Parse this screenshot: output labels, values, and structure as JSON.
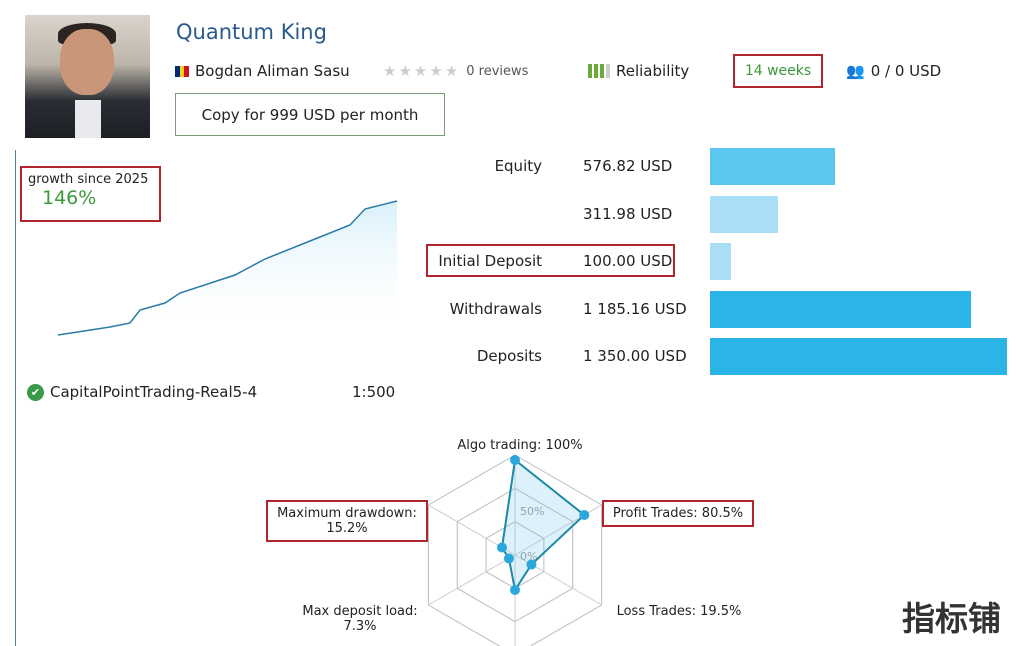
{
  "signal": {
    "title": "Quantum King",
    "author": "Bogdan Aliman Sasu",
    "rating_count": "0 reviews",
    "reliability_label": "Reliability",
    "weeks": "14 weeks",
    "subscribers": "0 / 0 USD",
    "subscribe_label": "Copy for 999 USD per month"
  },
  "growth": {
    "label": "growth since 2025",
    "value": "146%"
  },
  "broker": {
    "name": "CapitalPointTrading-Real5-4",
    "leverage": "1:500"
  },
  "stats": [
    {
      "label": "Equity",
      "value": "576.82 USD",
      "fraction": 0.42,
      "color": "#5bc6ee"
    },
    {
      "label": "",
      "value": "311.98 USD",
      "fraction": 0.23,
      "color": "#a9def6"
    },
    {
      "label": "Initial Deposit",
      "value": "100.00 USD",
      "fraction": 0.07,
      "color": "#a9def6"
    },
    {
      "label": "Withdrawals",
      "value": "1 185.16 USD",
      "fraction": 0.88,
      "color": "#2bb5e6"
    },
    {
      "label": "Deposits",
      "value": "1 350.00 USD",
      "fraction": 1.0,
      "color": "#2bb5e6"
    }
  ],
  "radar": {
    "ring_labels": [
      "50%",
      "0%"
    ],
    "axes": [
      {
        "label": "Algo trading: 100%",
        "value": 0.95
      },
      {
        "label": "Profit Trades: 80.5%",
        "value": 0.8
      },
      {
        "label": "Loss Trades: 19.5%",
        "value": 0.19
      },
      {
        "label": "",
        "value": 0.35
      },
      {
        "label": "Max deposit load: 7.3%",
        "value": 0.07
      },
      {
        "label": "Maximum drawdown: 15.2%",
        "value": 0.15
      }
    ]
  },
  "watermark": "指标铺"
}
